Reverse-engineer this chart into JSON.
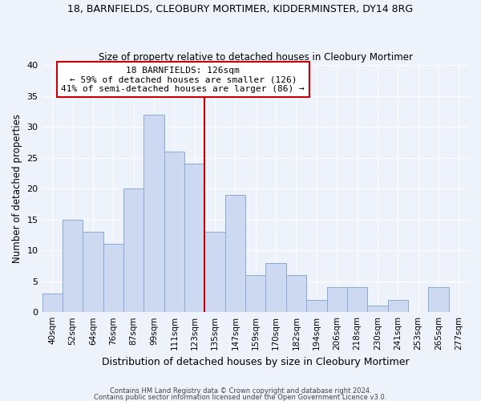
{
  "title1": "18, BARNFIELDS, CLEOBURY MORTIMER, KIDDERMINSTER, DY14 8RG",
  "title2": "Size of property relative to detached houses in Cleobury Mortimer",
  "xlabel": "Distribution of detached houses by size in Cleobury Mortimer",
  "ylabel": "Number of detached properties",
  "bar_labels": [
    "40sqm",
    "52sqm",
    "64sqm",
    "76sqm",
    "87sqm",
    "99sqm",
    "111sqm",
    "123sqm",
    "135sqm",
    "147sqm",
    "159sqm",
    "170sqm",
    "182sqm",
    "194sqm",
    "206sqm",
    "218sqm",
    "230sqm",
    "241sqm",
    "253sqm",
    "265sqm",
    "277sqm"
  ],
  "bar_values": [
    3,
    15,
    13,
    11,
    20,
    32,
    26,
    24,
    13,
    19,
    6,
    8,
    6,
    2,
    4,
    4,
    1,
    2,
    0,
    4,
    0
  ],
  "bar_color": "#ccd9f0",
  "bar_edgecolor": "#88aad8",
  "bg_color": "#eef2fb",
  "grid_color": "#ffffff",
  "vline_color": "#cc0000",
  "vline_position": 7.5,
  "annotation_title": "18 BARNFIELDS: 126sqm",
  "annotation_line1": "← 59% of detached houses are smaller (126)",
  "annotation_line2": "41% of semi-detached houses are larger (86) →",
  "annotation_box_facecolor": "#ffffff",
  "annotation_box_edgecolor": "#cc0000",
  "ylim": [
    0,
    40
  ],
  "yticks": [
    0,
    5,
    10,
    15,
    20,
    25,
    30,
    35,
    40
  ],
  "footer1": "Contains HM Land Registry data © Crown copyright and database right 2024.",
  "footer2": "Contains public sector information licensed under the Open Government Licence v3.0."
}
